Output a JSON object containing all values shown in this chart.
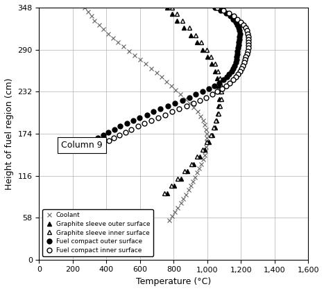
{
  "title": "",
  "xlabel": "Temperature (°C)",
  "ylabel": "Height of fuel region (cm)",
  "xlim": [
    0,
    1600
  ],
  "ylim": [
    0,
    348
  ],
  "xticks": [
    0,
    200,
    400,
    600,
    800,
    1000,
    1200,
    1400,
    1600
  ],
  "yticks": [
    0,
    58,
    116,
    174,
    232,
    290,
    348
  ],
  "annotation": "Column 9",
  "coolant": {
    "T": [
      270,
      290,
      310,
      330,
      355,
      382,
      410,
      440,
      470,
      502,
      535,
      568,
      600,
      632,
      665,
      698,
      730,
      758,
      785,
      812,
      840,
      868,
      895,
      920,
      942,
      960,
      975,
      985,
      992,
      995,
      996,
      995,
      992,
      988,
      982,
      974,
      964,
      952,
      940,
      928,
      915,
      902,
      888,
      873,
      858,
      842,
      825,
      808,
      791,
      774
    ],
    "h": [
      348,
      342,
      336,
      330,
      324,
      318,
      312,
      306,
      300,
      294,
      288,
      282,
      276,
      270,
      264,
      258,
      252,
      246,
      240,
      234,
      228,
      222,
      216,
      210,
      204,
      198,
      192,
      186,
      180,
      174,
      168,
      162,
      156,
      150,
      144,
      138,
      132,
      126,
      120,
      114,
      108,
      102,
      96,
      90,
      84,
      78,
      72,
      66,
      60,
      54
    ]
  },
  "graphite_outer": {
    "T": [
      760,
      790,
      820,
      860,
      900,
      940,
      972,
      1000,
      1025,
      1045,
      1060,
      1068,
      1072,
      1072,
      1068,
      1063,
      1055,
      1045,
      1030,
      1010,
      985,
      955,
      920,
      882,
      842,
      802,
      762
    ],
    "h": [
      348,
      339,
      330,
      320,
      310,
      300,
      290,
      280,
      270,
      260,
      250,
      240,
      232,
      222,
      212,
      202,
      192,
      182,
      172,
      162,
      152,
      142,
      132,
      122,
      112,
      102,
      92
    ]
  },
  "graphite_inner": {
    "T": [
      790,
      820,
      852,
      892,
      930,
      965,
      995,
      1020,
      1045,
      1062,
      1075,
      1082,
      1085,
      1082,
      1075,
      1065,
      1052,
      1038,
      1020,
      998,
      970,
      940,
      905,
      865,
      825,
      785,
      745
    ],
    "h": [
      348,
      339,
      330,
      320,
      310,
      300,
      290,
      280,
      270,
      260,
      250,
      240,
      232,
      222,
      212,
      202,
      192,
      182,
      172,
      162,
      152,
      142,
      132,
      122,
      112,
      102,
      92
    ]
  },
  "fuel_outer": {
    "T": [
      1045,
      1080,
      1110,
      1135,
      1155,
      1170,
      1180,
      1188,
      1192,
      1193,
      1192,
      1190,
      1188,
      1185,
      1182,
      1180,
      1178,
      1175,
      1172,
      1168,
      1162,
      1155,
      1145,
      1130,
      1115,
      1095,
      1070,
      1040,
      1008,
      970,
      930,
      892,
      850,
      808,
      765,
      722,
      680,
      640,
      598,
      558,
      520,
      482,
      446,
      412,
      380,
      350,
      322
    ],
    "h": [
      348,
      344,
      340,
      336,
      332,
      328,
      324,
      320,
      316,
      312,
      308,
      304,
      300,
      296,
      292,
      288,
      284,
      280,
      276,
      272,
      268,
      264,
      260,
      256,
      252,
      248,
      244,
      240,
      236,
      232,
      228,
      224,
      220,
      216,
      212,
      208,
      204,
      200,
      196,
      192,
      188,
      184,
      180,
      176,
      172,
      168,
      164
    ]
  },
  "fuel_inner": {
    "T": [
      1058,
      1095,
      1130,
      1158,
      1180,
      1200,
      1215,
      1226,
      1234,
      1240,
      1244,
      1246,
      1246,
      1244,
      1242,
      1238,
      1234,
      1229,
      1224,
      1218,
      1211,
      1203,
      1193,
      1182,
      1168,
      1152,
      1133,
      1112,
      1088,
      1060,
      1028,
      992,
      955,
      916,
      875,
      833,
      790,
      748,
      706,
      665,
      625,
      586,
      548,
      512,
      478,
      445,
      415
    ],
    "h": [
      348,
      344,
      340,
      336,
      332,
      328,
      324,
      320,
      316,
      312,
      308,
      304,
      300,
      296,
      292,
      288,
      284,
      280,
      276,
      272,
      268,
      264,
      260,
      256,
      252,
      248,
      244,
      240,
      236,
      232,
      228,
      224,
      220,
      216,
      212,
      208,
      204,
      200,
      196,
      192,
      188,
      184,
      180,
      176,
      172,
      168,
      164
    ]
  },
  "background_color": "#ffffff",
  "grid_color": "#b0b0b0"
}
